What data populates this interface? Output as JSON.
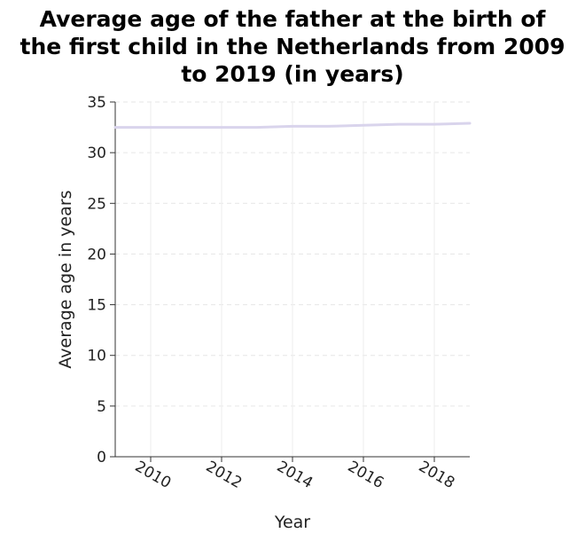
{
  "chart_data": {
    "type": "line",
    "title_lines": [
      "Average age of the father at the birth of",
      "the first child in the Netherlands from 2009",
      "to 2019 (in years)"
    ],
    "xlabel": "Year",
    "ylabel": "Average age in years",
    "xlim": [
      2009,
      2019
    ],
    "ylim": [
      0,
      35
    ],
    "x_ticks": [
      "2010",
      "2012",
      "2014",
      "2016",
      "2018"
    ],
    "y_ticks": [
      "0",
      "5",
      "10",
      "15",
      "20",
      "25",
      "30",
      "35"
    ],
    "grid": true,
    "series": [
      {
        "color": "#d9d4ec",
        "x": [
          2009,
          2010,
          2011,
          2012,
          2013,
          2014,
          2015,
          2016,
          2017,
          2018,
          2019
        ],
        "y": [
          32.5,
          32.5,
          32.5,
          32.5,
          32.5,
          32.6,
          32.6,
          32.7,
          32.8,
          32.8,
          32.9
        ]
      }
    ]
  }
}
